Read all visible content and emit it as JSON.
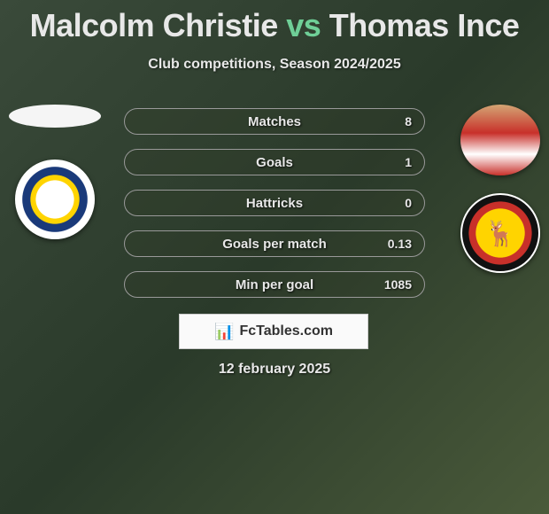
{
  "title": {
    "player1": "Malcolm Christie",
    "vs": "vs",
    "player2": "Thomas Ince",
    "player1_color": "#e8e8e8",
    "vs_color": "#6fcf97",
    "player2_color": "#e8e8e8",
    "fontsize": 36
  },
  "subtitle": "Club competitions, Season 2024/2025",
  "stats": {
    "label_color": "#e8e8e8",
    "row_border_color": "#999999",
    "rows": [
      {
        "label": "Matches",
        "left": "",
        "right": "8"
      },
      {
        "label": "Goals",
        "left": "",
        "right": "1"
      },
      {
        "label": "Hattricks",
        "left": "",
        "right": "0"
      },
      {
        "label": "Goals per match",
        "left": "",
        "right": "0.13"
      },
      {
        "label": "Min per goal",
        "left": "",
        "right": "1085"
      }
    ]
  },
  "avatars": {
    "left": [
      {
        "name": "player1-avatar-blank",
        "type": "blank-oval"
      },
      {
        "name": "player1-club-logo",
        "type": "club-leeds"
      }
    ],
    "right": [
      {
        "name": "player2-photo",
        "type": "player-photo"
      },
      {
        "name": "player2-club-logo",
        "type": "club-watford",
        "glyph": "🦌"
      }
    ]
  },
  "brand": {
    "icon": "📊",
    "text": "FcTables.com",
    "background": "#fafafa",
    "text_color": "#333333"
  },
  "date": "12 february 2025",
  "background_gradient": [
    "#3a4a3a",
    "#2a3a2a",
    "#4a5a3a"
  ]
}
